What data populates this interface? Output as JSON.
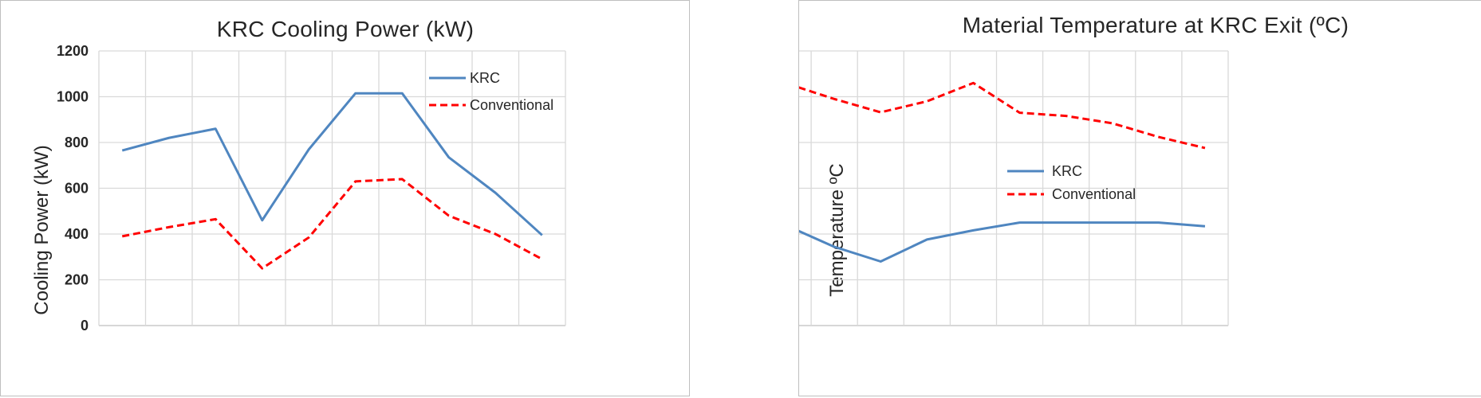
{
  "chart_data": [
    {
      "type": "line",
      "title": "KRC Cooling Power (kW)",
      "xlabel": "",
      "ylabel": "Cooling Power (kW)",
      "ylim": [
        0,
        1200
      ],
      "yticks": [
        0,
        200,
        400,
        600,
        800,
        1000,
        1200
      ],
      "x": [
        1,
        2,
        3,
        4,
        5,
        6,
        7,
        8,
        9,
        10
      ],
      "xlim": [
        0.5,
        10.5
      ],
      "grid": true,
      "legend_position": "top-right",
      "series": [
        {
          "name": "KRC",
          "color": "#4f86c0",
          "style": "solid",
          "values": [
            765,
            820,
            860,
            460,
            770,
            1015,
            1015,
            735,
            580,
            395
          ]
        },
        {
          "name": "Conventional",
          "color": "#ff0000",
          "style": "dashed",
          "values": [
            390,
            430,
            465,
            250,
            385,
            630,
            640,
            480,
            400,
            290
          ]
        }
      ]
    },
    {
      "type": "line",
      "title": "Material Temperature at KRC Exit (ºC)",
      "xlabel": "",
      "ylabel": "Temperature ºC",
      "ylim": [
        0,
        600
      ],
      "yticks": [
        0,
        100,
        200,
        300,
        400,
        500,
        600
      ],
      "x": [
        1,
        2,
        3,
        4,
        5,
        6,
        7,
        8,
        9,
        10
      ],
      "xlim": [
        0.5,
        10.5
      ],
      "grid": true,
      "legend_position": "center-right",
      "series": [
        {
          "name": "KRC",
          "color": "#4f86c0",
          "style": "solid",
          "values": [
            217,
            172,
            140,
            188,
            208,
            225,
            225,
            225,
            225,
            217
          ]
        },
        {
          "name": "Conventional",
          "color": "#ff0000",
          "style": "dashed",
          "values": [
            528,
            495,
            466,
            490,
            530,
            465,
            458,
            442,
            412,
            388
          ]
        }
      ]
    }
  ]
}
